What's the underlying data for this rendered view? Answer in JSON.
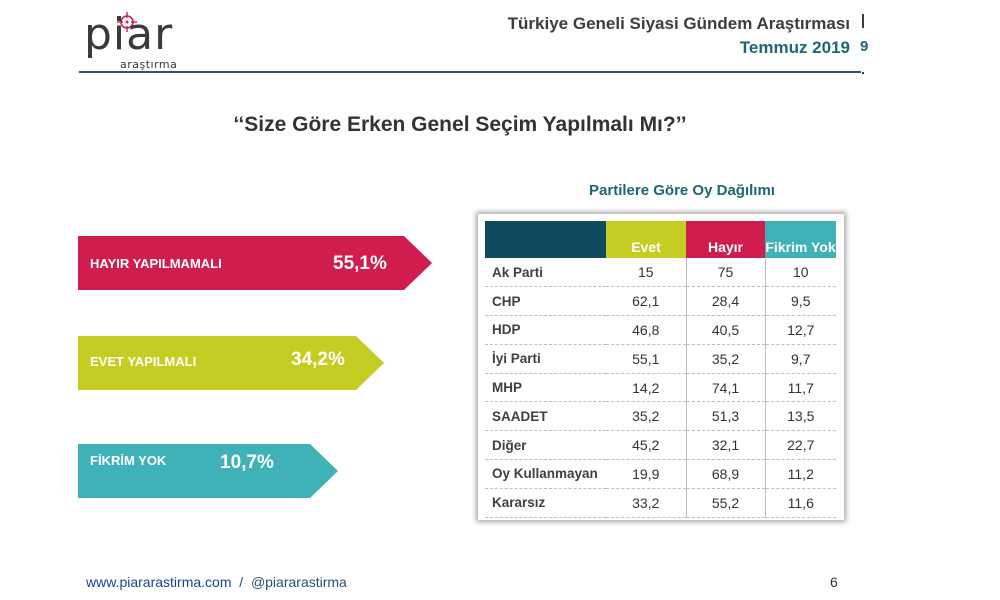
{
  "header": {
    "logo_text": "piar",
    "logo_subtext": "araştırma",
    "title": "Türkiye Geneli Siyasi Gündem Araştırması",
    "date": "Temmuz 2019",
    "edge_glyph": "9"
  },
  "question": "‘‘Size Göre Erken Genel Seçim Yapılmalı Mı?’’",
  "answers": [
    {
      "label": "HAYIR YAPILMAMALI",
      "value": "55,1%",
      "color": "#cf1e4d"
    },
    {
      "label": "EVET YAPILMALI",
      "value": "34,2%",
      "color": "#c6cd22"
    },
    {
      "label": "FİKRİM YOK",
      "value": "10,7%",
      "color": "#3fb2b7"
    }
  ],
  "table": {
    "title": "Partilere Göre Oy Dağılımı",
    "headers": [
      "",
      "Evet",
      "Hayır",
      "Fikrim Yok"
    ],
    "rows": [
      [
        "Ak Parti",
        "15",
        "75",
        "10"
      ],
      [
        "CHP",
        "62,1",
        "28,4",
        "9,5"
      ],
      [
        "HDP",
        "46,8",
        "40,5",
        "12,7"
      ],
      [
        "İyi Parti",
        "55,1",
        "35,2",
        "9,7"
      ],
      [
        "MHP",
        "14,2",
        "74,1",
        "11,7"
      ],
      [
        "SAADET",
        "35,2",
        "51,3",
        "13,5"
      ],
      [
        "Diğer",
        "45,2",
        "32,1",
        "22,7"
      ],
      [
        "Oy Kullanmayan",
        "19,9",
        "68,9",
        "11,2"
      ],
      [
        "Kararsız",
        "33,2",
        "55,2",
        "11,6"
      ]
    ]
  },
  "footer": {
    "website": "www.piararastirma.com",
    "separator": "/",
    "handle": "@piararastirma",
    "page": "6"
  }
}
